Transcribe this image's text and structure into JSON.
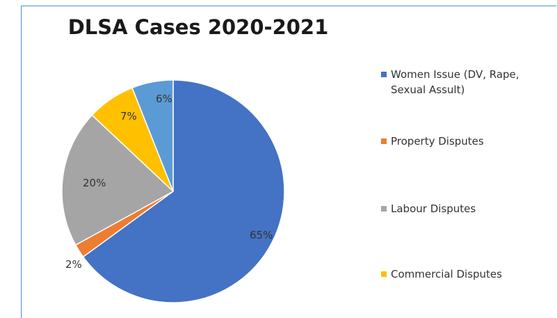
{
  "chart_data": {
    "type": "pie",
    "title": "DLSA Cases 2020-2021",
    "slices": [
      {
        "name": "Women Issue (DV, Rape, Sexual Assult)",
        "value": 65,
        "label": "65%",
        "color": "#4472c4"
      },
      {
        "name": "Property Disputes",
        "value": 2,
        "label": "2%",
        "color": "#ed7d31"
      },
      {
        "name": "Labour Disputes",
        "value": 20,
        "label": "20%",
        "color": "#a5a5a5"
      },
      {
        "name": "Commercial Disputes",
        "value": 7,
        "label": "7%",
        "color": "#ffc000"
      },
      {
        "name": "",
        "value": 6,
        "label": "6%",
        "color": "#5b9bd5"
      }
    ],
    "legend": {
      "placement": "right",
      "entries": [
        {
          "label_line1": "Women Issue (DV, Rape,",
          "label_line2": "Sexual Assult)",
          "color": "#4472c4"
        },
        {
          "label_line1": "Property Disputes",
          "label_line2": "",
          "color": "#ed7d31"
        },
        {
          "label_line1": "Labour Disputes",
          "label_line2": "",
          "color": "#a5a5a5"
        },
        {
          "label_line1": "Commercial Disputes",
          "label_line2": "",
          "color": "#ffc000"
        }
      ]
    }
  }
}
